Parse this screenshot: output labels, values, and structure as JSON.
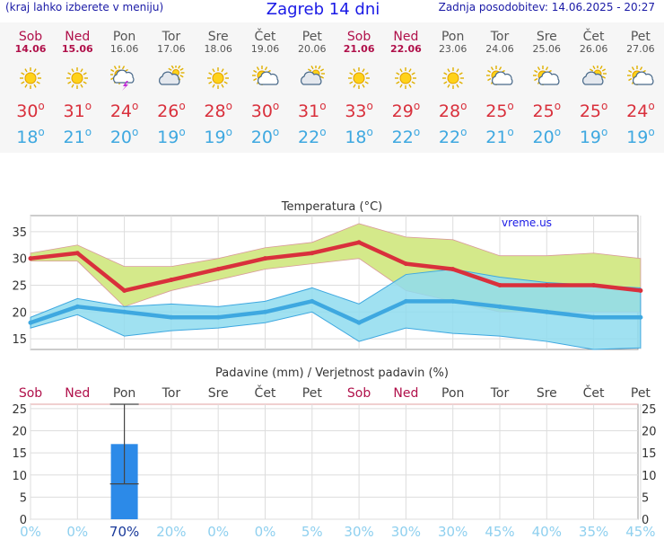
{
  "header": {
    "menu_hint": "(kraj lahko izberete v meniju)",
    "title": "Zagreb 14 dni",
    "updated": "Zadnja posodobitev: 14.06.2025 - 20:27"
  },
  "days": [
    {
      "name": "Sob",
      "date": "14.06",
      "weekend": true,
      "icon": "sun-icon",
      "max": "30",
      "min": "18"
    },
    {
      "name": "Ned",
      "date": "15.06",
      "weekend": true,
      "icon": "sun-icon",
      "max": "31",
      "min": "21"
    },
    {
      "name": "Pon",
      "date": "16.06",
      "weekend": false,
      "icon": "thunderstorm-icon",
      "max": "24",
      "min": "20"
    },
    {
      "name": "Tor",
      "date": "17.06",
      "weekend": false,
      "icon": "cloud-icon",
      "max": "26",
      "min": "19"
    },
    {
      "name": "Sre",
      "date": "18.06",
      "weekend": false,
      "icon": "sun-icon",
      "max": "28",
      "min": "19"
    },
    {
      "name": "Čet",
      "date": "19.06",
      "weekend": false,
      "icon": "sun-cloud-icon",
      "max": "30",
      "min": "20"
    },
    {
      "name": "Pet",
      "date": "20.06",
      "weekend": false,
      "icon": "cloud-sun-icon",
      "max": "31",
      "min": "22"
    },
    {
      "name": "Sob",
      "date": "21.06",
      "weekend": true,
      "icon": "sun-icon",
      "max": "33",
      "min": "18"
    },
    {
      "name": "Ned",
      "date": "22.06",
      "weekend": true,
      "icon": "sun-icon",
      "max": "29",
      "min": "22"
    },
    {
      "name": "Pon",
      "date": "23.06",
      "weekend": false,
      "icon": "sun-icon",
      "max": "28",
      "min": "22"
    },
    {
      "name": "Tor",
      "date": "24.06",
      "weekend": false,
      "icon": "sun-cloud-icon",
      "max": "25",
      "min": "21"
    },
    {
      "name": "Sre",
      "date": "25.06",
      "weekend": false,
      "icon": "sun-cloud-icon",
      "max": "25",
      "min": "20"
    },
    {
      "name": "Čet",
      "date": "26.06",
      "weekend": false,
      "icon": "cloud-sun-icon",
      "max": "25",
      "min": "19"
    },
    {
      "name": "Pet",
      "date": "27.06",
      "weekend": false,
      "icon": "sun-cloud-icon",
      "max": "24",
      "min": "19"
    }
  ],
  "colors": {
    "max_line": "#d9303c",
    "min_line": "#3ea8e0",
    "max_band": "#d4e98a",
    "min_band": "#8fdcef",
    "overlap_band": "#7cc987",
    "bar": "#2c8ae8",
    "weekend": "#b0104a",
    "prob": "#8fd0ef",
    "prob_high": "#1a3a9a"
  },
  "chart_data": [
    {
      "type": "line",
      "title": "Temperatura (°C)",
      "watermark": "vreme.us",
      "categories": [
        "Sob",
        "Ned",
        "Pon",
        "Tor",
        "Sre",
        "Čet",
        "Pet",
        "Sob",
        "Ned",
        "Pon",
        "Tor",
        "Sre",
        "Čet",
        "Pet"
      ],
      "ylim": [
        13,
        38
      ],
      "yticks": [
        15,
        20,
        25,
        30,
        35
      ],
      "grid": true,
      "series": [
        {
          "role": "max",
          "values": [
            30,
            31,
            24,
            26,
            28,
            30,
            31,
            33,
            29,
            28,
            25,
            25,
            25,
            24
          ]
        },
        {
          "role": "max_range_upper",
          "values": [
            31,
            32.5,
            28.5,
            28.5,
            30,
            32,
            33,
            36.5,
            34,
            33.5,
            30.5,
            30.5,
            31,
            30
          ]
        },
        {
          "role": "max_range_lower",
          "values": [
            29.5,
            29.5,
            21,
            24,
            26,
            28,
            29,
            30,
            24,
            22,
            20,
            20,
            20,
            20
          ]
        },
        {
          "role": "min",
          "values": [
            18,
            21,
            20,
            19,
            19,
            20,
            22,
            18,
            22,
            22,
            21,
            20,
            19,
            19
          ]
        },
        {
          "role": "min_range_upper",
          "values": [
            19,
            22.5,
            21,
            21.5,
            21,
            22,
            24.5,
            21.5,
            27,
            28,
            26.5,
            25.5,
            25,
            24.5
          ]
        },
        {
          "role": "min_range_lower",
          "values": [
            17,
            19.5,
            15.5,
            16.5,
            17,
            18,
            20,
            14.5,
            17,
            16,
            15.5,
            14.5,
            13,
            13.3
          ]
        }
      ]
    },
    {
      "type": "bar",
      "title": "Padavine (mm) / Verjetnost padavin (%)",
      "categories": [
        "Sob",
        "Ned",
        "Pon",
        "Tor",
        "Sre",
        "Čet",
        "Pet",
        "Sob",
        "Ned",
        "Pon",
        "Tor",
        "Sre",
        "Čet",
        "Pet"
      ],
      "ylim": [
        0,
        26
      ],
      "yticks": [
        0,
        5,
        10,
        15,
        20,
        25
      ],
      "values": [
        0,
        0,
        17,
        0,
        0,
        0,
        0,
        0,
        0,
        0,
        0,
        0,
        0,
        0
      ],
      "error_bars": [
        null,
        null,
        [
          8,
          26
        ],
        null,
        null,
        null,
        null,
        null,
        null,
        null,
        null,
        null,
        null,
        null
      ],
      "probability": [
        "0%",
        "0%",
        "70%",
        "20%",
        "0%",
        "0%",
        "5%",
        "30%",
        "30%",
        "30%",
        "45%",
        "40%",
        "35%",
        "45%"
      ],
      "probability_values": [
        0,
        0,
        70,
        20,
        0,
        0,
        5,
        30,
        30,
        30,
        45,
        40,
        35,
        45
      ]
    }
  ]
}
